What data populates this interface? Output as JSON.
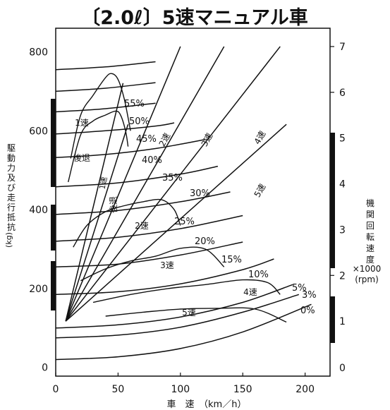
{
  "chart_data": {
    "type": "line",
    "title": "〔2.0ℓ〕5速マニュアル車",
    "xlabel": "車　速　（km／h）",
    "ylabel": "駆動力及び走行抵抗(kg)",
    "y2label_main": "機関回転速度",
    "y2label_unit": "×1000",
    "y2label_rpm": "(rpm)",
    "xlim": [
      0,
      220
    ],
    "ylim": [
      0,
      800
    ],
    "y2lim": [
      0,
      7
    ],
    "x_ticks": [
      "0",
      "50",
      "100",
      "150",
      "200"
    ],
    "y_ticks": [
      "0",
      "200",
      "400",
      "600",
      "800"
    ],
    "y2_ticks": [
      "1",
      "2",
      "3",
      "4",
      "5",
      "6",
      "7"
    ],
    "grade_labels": [
      "55%",
      "50%",
      "45%",
      "40%",
      "35%",
      "30%",
      "25%",
      "20%",
      "15%",
      "10%",
      "5%",
      "3%",
      "0%"
    ],
    "gear_labels": [
      "1速",
      "2速",
      "3速",
      "4速",
      "5速",
      "後退"
    ],
    "resistance_curves": [
      {
        "name": "55%",
        "x": [
          0,
          40,
          80
        ],
        "y": [
          755,
          762,
          775
        ]
      },
      {
        "name": "50%",
        "x": [
          0,
          40,
          80
        ],
        "y": [
          700,
          708,
          722
        ]
      },
      {
        "name": "45%",
        "x": [
          0,
          40,
          80
        ],
        "y": [
          648,
          656,
          670
        ]
      },
      {
        "name": "40%",
        "x": [
          0,
          40,
          80,
          95
        ],
        "y": [
          592,
          600,
          612,
          620
        ]
      },
      {
        "name": "35%",
        "x": [
          0,
          40,
          80,
          120
        ],
        "y": [
          532,
          540,
          555,
          578
        ]
      },
      {
        "name": "30%",
        "x": [
          0,
          50,
          100,
          130
        ],
        "y": [
          458,
          468,
          490,
          510
        ]
      },
      {
        "name": "25%",
        "x": [
          0,
          50,
          100,
          140
        ],
        "y": [
          388,
          398,
          420,
          445
        ]
      },
      {
        "name": "20%",
        "x": [
          0,
          50,
          100,
          150
        ],
        "y": [
          320,
          330,
          352,
          385
        ]
      },
      {
        "name": "15%",
        "x": [
          0,
          50,
          100,
          150
        ],
        "y": [
          255,
          262,
          285,
          318
        ]
      },
      {
        "name": "10%",
        "x": [
          0,
          50,
          100,
          150,
          175
        ],
        "y": [
          185,
          192,
          212,
          248,
          275
        ]
      },
      {
        "name": "5%",
        "x": [
          0,
          50,
          100,
          150,
          190
        ],
        "y": [
          100,
          108,
          128,
          165,
          210
        ]
      },
      {
        "name": "3%",
        "x": [
          0,
          50,
          100,
          150,
          195
        ],
        "y": [
          75,
          82,
          102,
          140,
          185
        ]
      },
      {
        "name": "0%",
        "x": [
          0,
          50,
          100,
          150,
          205
        ],
        "y": [
          20,
          27,
          48,
          90,
          160
        ]
      }
    ],
    "driving_force_curves": [
      {
        "name": "1速",
        "x": [
          12,
          20,
          30,
          40,
          45,
          50,
          55,
          60
        ],
        "y": [
          530,
          640,
          690,
          735,
          745,
          730,
          680,
          600
        ]
      },
      {
        "name": "後退",
        "x": [
          10,
          20,
          30,
          40,
          48,
          52,
          56,
          58
        ],
        "y": [
          470,
          590,
          625,
          640,
          650,
          640,
          600,
          560
        ]
      },
      {
        "name": "2速",
        "x": [
          14,
          25,
          40,
          55,
          70,
          85,
          95,
          100
        ],
        "y": [
          305,
          360,
          395,
          410,
          420,
          425,
          400,
          360
        ]
      },
      {
        "name": "3速",
        "x": [
          20,
          40,
          60,
          80,
          100,
          120,
          135
        ],
        "y": [
          220,
          250,
          270,
          282,
          302,
          300,
          255
        ]
      },
      {
        "name": "4速",
        "x": [
          30,
          60,
          90,
          120,
          150,
          170,
          180
        ],
        "y": [
          165,
          185,
          200,
          210,
          222,
          215,
          185
        ]
      },
      {
        "name": "5速",
        "x": [
          40,
          70,
          100,
          130,
          160,
          185
        ],
        "y": [
          130,
          140,
          148,
          150,
          148,
          115
        ]
      }
    ],
    "rpm_lines": [
      {
        "name": "1速",
        "x": [
          8,
          54
        ],
        "rpm": [
          1.0,
          6.2
        ]
      },
      {
        "name": "後退",
        "x": [
          8,
          58
        ],
        "rpm": [
          1.0,
          5.3
        ]
      },
      {
        "name": "2速",
        "x": [
          8,
          100
        ],
        "rpm": [
          1.0,
          7.0
        ]
      },
      {
        "name": "3速",
        "x": [
          8,
          135
        ],
        "rpm": [
          1.0,
          7.0
        ]
      },
      {
        "name": "4速",
        "x": [
          8,
          180
        ],
        "rpm": [
          1.0,
          7.0
        ]
      },
      {
        "name": "5速",
        "x": [
          8,
          185
        ],
        "rpm": [
          1.0,
          5.3
        ]
      }
    ],
    "grid": false,
    "legend": "none"
  }
}
